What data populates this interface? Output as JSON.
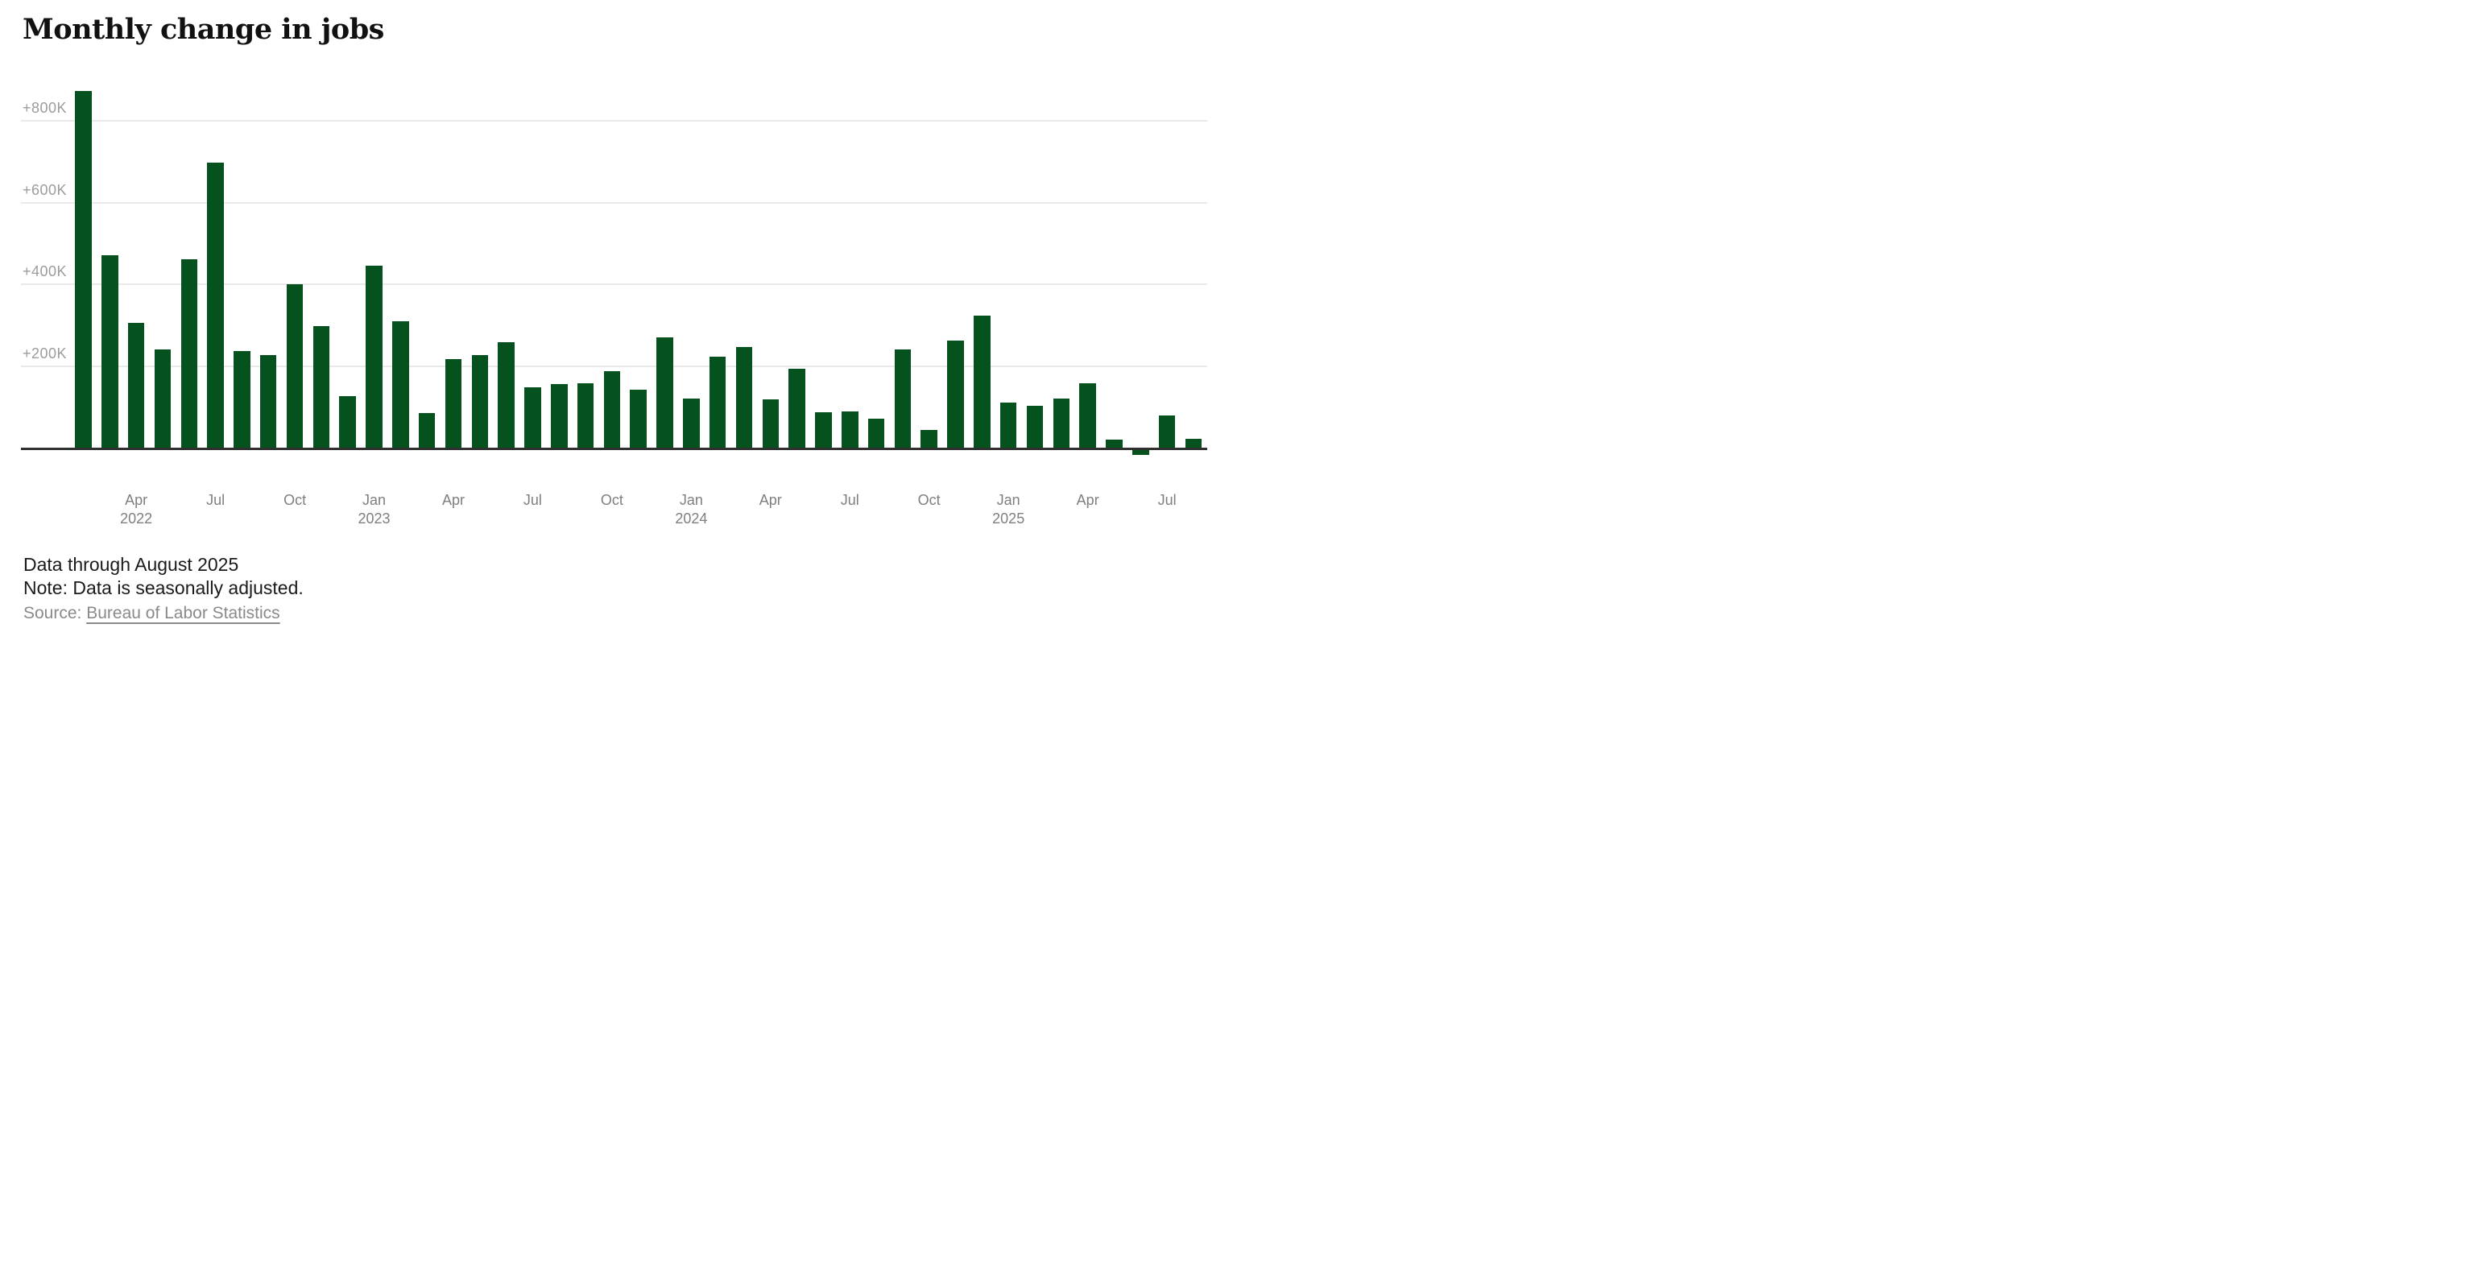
{
  "header": {
    "title": "Monthly change in jobs"
  },
  "chart_data": {
    "type": "bar",
    "title": "Monthly change in jobs",
    "unit": "change in jobs, thousands (K)",
    "categories": [
      "Feb 2022",
      "Mar 2022",
      "Apr 2022",
      "May 2022",
      "Jun 2022",
      "Jul 2022",
      "Aug 2022",
      "Sep 2022",
      "Oct 2022",
      "Nov 2022",
      "Dec 2022",
      "Jan 2023",
      "Feb 2023",
      "Mar 2023",
      "Apr 2023",
      "May 2023",
      "Jun 2023",
      "Jul 2023",
      "Aug 2023",
      "Sep 2023",
      "Oct 2023",
      "Nov 2023",
      "Dec 2023",
      "Jan 2024",
      "Feb 2024",
      "Mar 2024",
      "Apr 2024",
      "May 2024",
      "Jun 2024",
      "Jul 2024",
      "Aug 2024",
      "Sep 2024",
      "Oct 2024",
      "Nov 2024",
      "Dec 2024",
      "Jan 2025",
      "Feb 2025",
      "Mar 2025",
      "Apr 2025",
      "May 2025",
      "Jun 2025",
      "Jul 2025",
      "Aug 2025"
    ],
    "values": [
      870,
      470,
      304,
      240,
      460,
      695,
      236,
      226,
      399,
      296,
      125,
      444,
      308,
      84,
      216,
      227,
      257,
      147,
      155,
      157,
      186,
      141,
      269,
      119,
      222,
      246,
      118,
      193,
      87,
      88,
      71,
      240,
      44,
      261,
      323,
      111,
      102,
      120,
      158,
      19,
      -13,
      79,
      22
    ],
    "y_ticks": [
      {
        "label": "+200K",
        "value": 200
      },
      {
        "label": "+400K",
        "value": 400
      },
      {
        "label": "+600K",
        "value": 600
      },
      {
        "label": "+800K",
        "value": 800
      }
    ],
    "x_ticks": [
      {
        "index": 2,
        "label": "Apr",
        "year": "2022"
      },
      {
        "index": 5,
        "label": "Jul",
        "year": ""
      },
      {
        "index": 8,
        "label": "Oct",
        "year": ""
      },
      {
        "index": 11,
        "label": "Jan",
        "year": "2023"
      },
      {
        "index": 14,
        "label": "Apr",
        "year": ""
      },
      {
        "index": 17,
        "label": "Jul",
        "year": ""
      },
      {
        "index": 20,
        "label": "Oct",
        "year": ""
      },
      {
        "index": 23,
        "label": "Jan",
        "year": "2024"
      },
      {
        "index": 26,
        "label": "Apr",
        "year": ""
      },
      {
        "index": 29,
        "label": "Jul",
        "year": ""
      },
      {
        "index": 32,
        "label": "Oct",
        "year": ""
      },
      {
        "index": 35,
        "label": "Jan",
        "year": "2025"
      },
      {
        "index": 38,
        "label": "Apr",
        "year": ""
      },
      {
        "index": 41,
        "label": "Jul",
        "year": ""
      }
    ],
    "ylim": [
      -50,
      900
    ],
    "grid": true,
    "legend": "none",
    "colors": {
      "bar": "#05521e",
      "axis_line": "#303030",
      "gridline": "#e9e9e9",
      "y_tick_text": "#9c9c9c",
      "x_tick_text": "#7f7f7f"
    }
  },
  "footer": {
    "data_through": "Data through August 2025",
    "note": "Note: Data is seasonally adjusted.",
    "source_prefix": "Source: ",
    "source_link": "Bureau of Labor Statistics"
  }
}
